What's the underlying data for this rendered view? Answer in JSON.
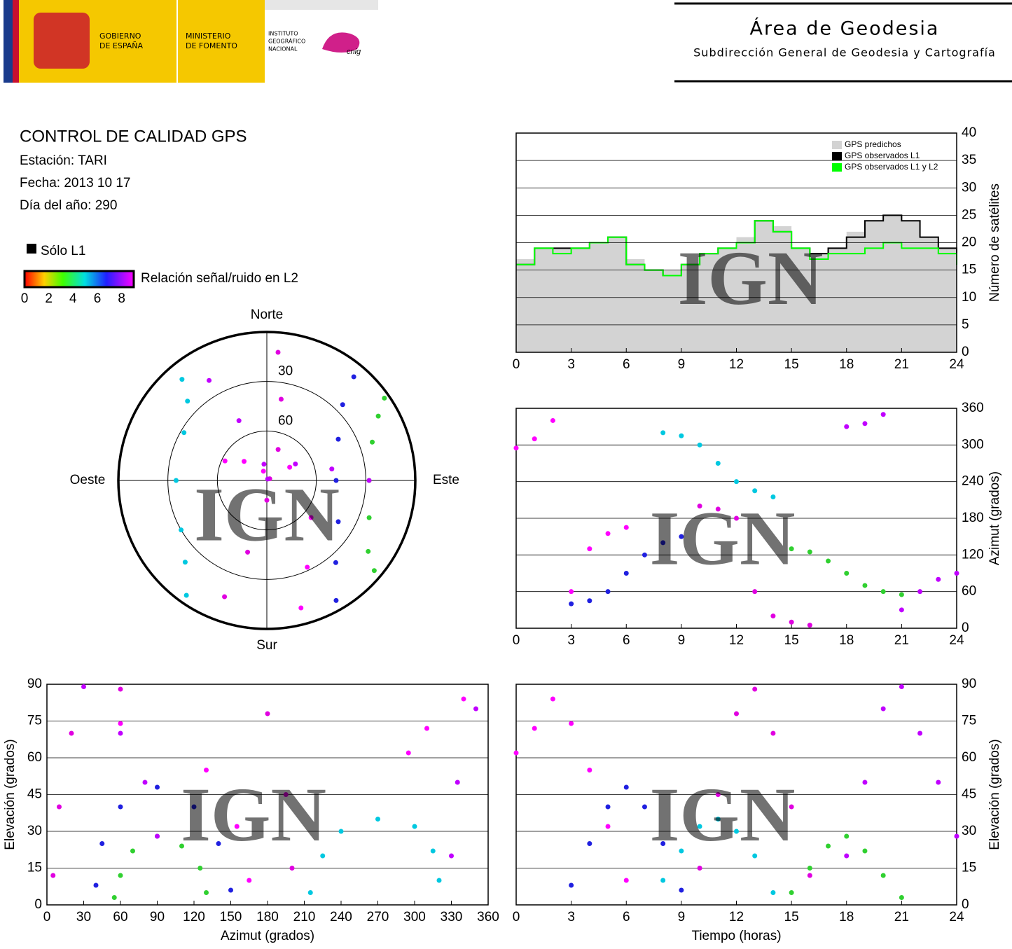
{
  "header": {
    "gov": [
      "GOBIERNO",
      "DE ESPAÑA"
    ],
    "ministry": [
      "MINISTERIO",
      "DE FOMENTO"
    ],
    "institute": [
      "INSTITUTO",
      "GEOGRÁFICO",
      "NACIONAL"
    ],
    "logo_text": "cnig",
    "title": "Área de Geodesia",
    "subtitle": "Subdirección General de Geodesia y Cartografía"
  },
  "info": {
    "title": "CONTROL DE CALIDAD GPS",
    "lines": [
      "Estación: TARI",
      "Fecha: 2013 10 17",
      "Día del año: 290"
    ],
    "legend_l1": "Sólo L1",
    "colorbar_label": "Relación señal/ruido en L2",
    "colorbar_ticks": [
      0,
      2,
      4,
      6,
      8
    ],
    "colorbar_lim": [
      0,
      9
    ]
  },
  "watermark": "IGN",
  "chart_data": [
    {
      "type": "line",
      "step": true,
      "ylabel": "Número de satélites",
      "y_side": "right",
      "grid": true,
      "xlim": [
        0,
        24
      ],
      "xticks": [
        0,
        3,
        6,
        9,
        12,
        15,
        18,
        21,
        24
      ],
      "ylim": [
        0,
        40
      ],
      "yticks": [
        0,
        5,
        10,
        15,
        20,
        25,
        30,
        35,
        40
      ],
      "x": [
        0,
        1,
        2,
        3,
        4,
        5,
        6,
        7,
        8,
        9,
        10,
        11,
        12,
        13,
        14,
        15,
        16,
        17,
        18,
        19,
        20,
        21,
        22,
        23,
        24
      ],
      "series": [
        {
          "name": "GPS predichos",
          "color": "#d3d3d3",
          "area": true,
          "values": [
            17,
            19,
            19,
            19,
            20,
            21,
            17,
            15,
            15,
            16,
            18,
            19,
            21,
            24,
            23,
            19,
            18,
            19,
            22,
            24,
            25,
            24,
            21,
            19,
            18
          ]
        },
        {
          "name": "GPS observados L1",
          "color": "#000000",
          "values": [
            16,
            19,
            19,
            19,
            20,
            21,
            16,
            15,
            14,
            16,
            18,
            19,
            20,
            24,
            22,
            19,
            18,
            19,
            21,
            24,
            25,
            24,
            21,
            19,
            17
          ]
        },
        {
          "name": "GPS observados L1 y L2",
          "color": "#00ff00",
          "values": [
            16,
            19,
            18,
            19,
            20,
            21,
            16,
            15,
            14,
            16,
            18,
            19,
            20,
            24,
            22,
            19,
            17,
            18,
            18,
            19,
            20,
            19,
            19,
            18,
            16
          ]
        }
      ]
    },
    {
      "type": "polar",
      "ylim": [
        0,
        90
      ],
      "rticks": [
        30,
        60
      ],
      "directions": [
        "Norte",
        "Este",
        "Sur",
        "Oeste"
      ],
      "series": [
        {
          "color": "#ff00ff",
          "azimuth": [
            295,
            310,
            340,
            60,
            130,
            155,
            165
          ],
          "elevation": [
            62,
            72,
            84,
            74,
            55,
            32,
            10
          ]
        },
        {
          "color": "#2020e0",
          "azimuth": [
            40,
            45,
            60,
            90,
            120,
            140,
            150
          ],
          "elevation": [
            8,
            25,
            40,
            48,
            40,
            25,
            6
          ]
        },
        {
          "color": "#00c8e0",
          "azimuth": [
            320,
            315,
            300,
            270,
            240,
            225,
            215
          ],
          "elevation": [
            10,
            22,
            32,
            35,
            30,
            20,
            5
          ]
        },
        {
          "color": "#e000e0",
          "azimuth": [
            200,
            195,
            180,
            60,
            20,
            10,
            5
          ],
          "elevation": [
            15,
            45,
            78,
            88,
            70,
            40,
            12
          ]
        },
        {
          "color": "#30d030",
          "azimuth": [
            130,
            125,
            110,
            90,
            70,
            60,
            55
          ],
          "elevation": [
            5,
            15,
            24,
            28,
            22,
            12,
            3
          ]
        },
        {
          "color": "#c000ff",
          "azimuth": [
            330,
            335,
            350,
            30,
            60,
            80,
            90
          ],
          "elevation": [
            20,
            50,
            80,
            89,
            70,
            50,
            28
          ]
        }
      ]
    },
    {
      "type": "scatter",
      "ylabel": "Azimut (grados)",
      "y_side": "right",
      "grid": true,
      "xlim": [
        0,
        24
      ],
      "xticks": [
        0,
        3,
        6,
        9,
        12,
        15,
        18,
        21,
        24
      ],
      "ylim": [
        0,
        360
      ],
      "yticks": [
        0,
        60,
        120,
        180,
        240,
        300,
        360
      ],
      "series": [
        {
          "color": "#ff00ff",
          "x": [
            0,
            1,
            2,
            3,
            4,
            5,
            6
          ],
          "values": [
            295,
            310,
            340,
            60,
            130,
            155,
            165
          ]
        },
        {
          "color": "#2020e0",
          "x": [
            3,
            4,
            5,
            6,
            7,
            8,
            9
          ],
          "values": [
            40,
            45,
            60,
            90,
            120,
            140,
            150
          ]
        },
        {
          "color": "#00c8e0",
          "x": [
            8,
            9,
            10,
            11,
            12,
            13,
            14
          ],
          "values": [
            320,
            315,
            300,
            270,
            240,
            225,
            215
          ]
        },
        {
          "color": "#e000e0",
          "x": [
            10,
            11,
            12,
            13,
            14,
            15,
            16
          ],
          "values": [
            200,
            195,
            180,
            60,
            20,
            10,
            5
          ]
        },
        {
          "color": "#30d030",
          "x": [
            15,
            16,
            17,
            18,
            19,
            20,
            21
          ],
          "values": [
            130,
            125,
            110,
            90,
            70,
            60,
            55
          ]
        },
        {
          "color": "#c000ff",
          "x": [
            18,
            19,
            20,
            21,
            22,
            23,
            24
          ],
          "values": [
            330,
            335,
            350,
            30,
            60,
            80,
            90
          ]
        }
      ]
    },
    {
      "type": "scatter",
      "xlabel": "Azimut (grados)",
      "ylabel": "Elevación (grados)",
      "y_side": "left",
      "grid": true,
      "xlim": [
        0,
        360
      ],
      "xticks": [
        0,
        30,
        60,
        90,
        120,
        150,
        180,
        210,
        240,
        270,
        300,
        330,
        360
      ],
      "ylim": [
        0,
        90
      ],
      "yticks": [
        0,
        15,
        30,
        45,
        60,
        75,
        90
      ],
      "series": [
        {
          "color": "#ff00ff",
          "x": [
            295,
            310,
            340,
            60,
            130,
            155,
            165
          ],
          "values": [
            62,
            72,
            84,
            74,
            55,
            32,
            10
          ]
        },
        {
          "color": "#2020e0",
          "x": [
            40,
            45,
            60,
            90,
            120,
            140,
            150
          ],
          "values": [
            8,
            25,
            40,
            48,
            40,
            25,
            6
          ]
        },
        {
          "color": "#00c8e0",
          "x": [
            320,
            315,
            300,
            270,
            240,
            225,
            215
          ],
          "values": [
            10,
            22,
            32,
            35,
            30,
            20,
            5
          ]
        },
        {
          "color": "#e000e0",
          "x": [
            200,
            195,
            180,
            60,
            20,
            10,
            5
          ],
          "values": [
            15,
            45,
            78,
            88,
            70,
            40,
            12
          ]
        },
        {
          "color": "#30d030",
          "x": [
            130,
            125,
            110,
            90,
            70,
            60,
            55
          ],
          "values": [
            5,
            15,
            24,
            28,
            22,
            12,
            3
          ]
        },
        {
          "color": "#c000ff",
          "x": [
            330,
            335,
            350,
            30,
            60,
            80,
            90
          ],
          "values": [
            20,
            50,
            80,
            89,
            70,
            50,
            28
          ]
        }
      ]
    },
    {
      "type": "scatter",
      "xlabel": "Tiempo (horas)",
      "ylabel": "Elevación (grados)",
      "y_side": "right",
      "grid": true,
      "xlim": [
        0,
        24
      ],
      "xticks": [
        0,
        3,
        6,
        9,
        12,
        15,
        18,
        21,
        24
      ],
      "ylim": [
        0,
        90
      ],
      "yticks": [
        0,
        15,
        30,
        45,
        60,
        75,
        90
      ],
      "series": [
        {
          "color": "#ff00ff",
          "x": [
            0,
            1,
            2,
            3,
            4,
            5,
            6
          ],
          "values": [
            62,
            72,
            84,
            74,
            55,
            32,
            10
          ]
        },
        {
          "color": "#2020e0",
          "x": [
            3,
            4,
            5,
            6,
            7,
            8,
            9
          ],
          "values": [
            8,
            25,
            40,
            48,
            40,
            25,
            6
          ]
        },
        {
          "color": "#00c8e0",
          "x": [
            8,
            9,
            10,
            11,
            12,
            13,
            14
          ],
          "values": [
            10,
            22,
            32,
            35,
            30,
            20,
            5
          ]
        },
        {
          "color": "#e000e0",
          "x": [
            10,
            11,
            12,
            13,
            14,
            15,
            16
          ],
          "values": [
            15,
            45,
            78,
            88,
            70,
            40,
            12
          ]
        },
        {
          "color": "#30d030",
          "x": [
            15,
            16,
            17,
            18,
            19,
            20,
            21
          ],
          "values": [
            5,
            15,
            24,
            28,
            22,
            12,
            3
          ]
        },
        {
          "color": "#c000ff",
          "x": [
            18,
            19,
            20,
            21,
            22,
            23,
            24
          ],
          "values": [
            20,
            50,
            80,
            89,
            70,
            50,
            28
          ]
        }
      ]
    }
  ]
}
